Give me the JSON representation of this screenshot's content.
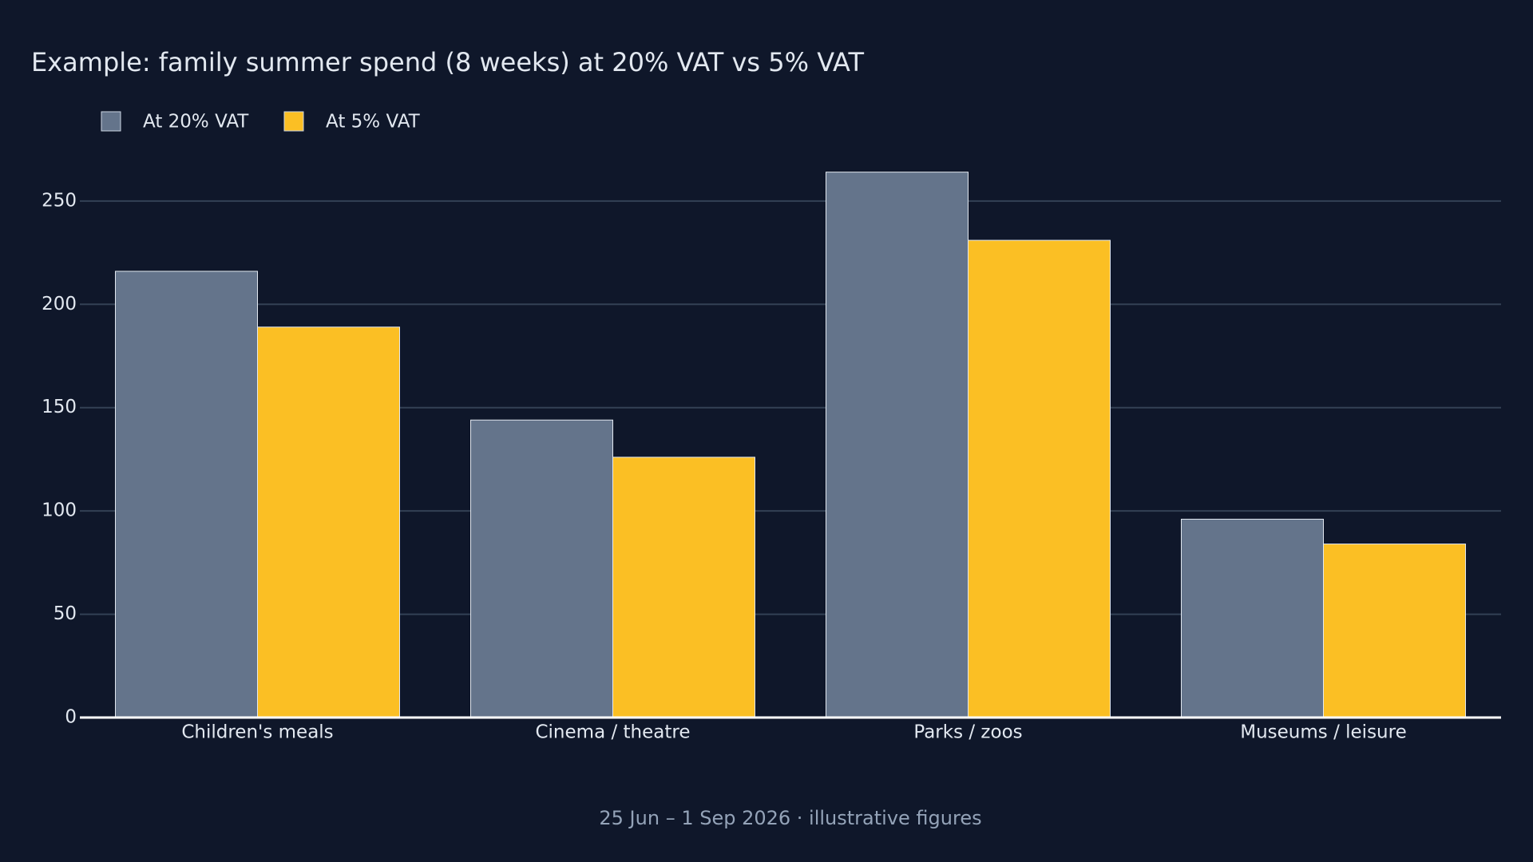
{
  "chart_data": {
    "type": "bar",
    "title": "Example: family summer spend (8 weeks) at 20% VAT vs 5% VAT",
    "footer": "25 Jun – 1 Sep 2026 · illustrative figures",
    "categories": [
      "Children's meals",
      "Cinema / theatre",
      "Parks / zoos",
      "Museums / leisure"
    ],
    "series": [
      {
        "name": "At 20% VAT",
        "color": "#64748b",
        "values": [
          216,
          144,
          264,
          96
        ]
      },
      {
        "name": "At 5% VAT",
        "color": "#fbbf24",
        "values": [
          189,
          126,
          231,
          84
        ]
      }
    ],
    "ylim": [
      0,
      277
    ],
    "yticks": [
      0,
      50,
      100,
      150,
      200,
      250
    ],
    "grid": true
  }
}
